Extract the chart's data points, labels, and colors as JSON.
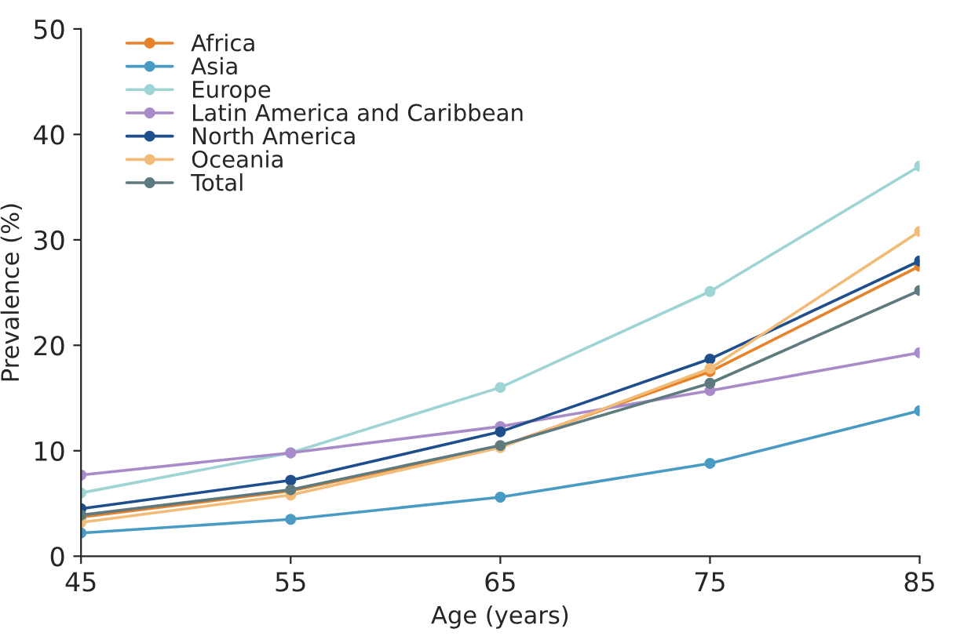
{
  "chart_data": {
    "type": "line",
    "xlabel": "Age (years)",
    "ylabel": "Prevalence (%)",
    "x": [
      45,
      55,
      65,
      75,
      85
    ],
    "series": [
      {
        "name": "Africa",
        "color": "#e8822a",
        "values": [
          3.7,
          6.2,
          10.4,
          17.5,
          27.5
        ]
      },
      {
        "name": "Asia",
        "color": "#4a9bc4",
        "values": [
          2.2,
          3.5,
          5.6,
          8.8,
          13.8
        ]
      },
      {
        "name": "Europe",
        "color": "#9fd4d4",
        "values": [
          6.0,
          9.8,
          16.0,
          25.1,
          37.0
        ]
      },
      {
        "name": "Latin America and Caribbean",
        "color": "#a98bc9",
        "values": [
          7.7,
          9.8,
          12.3,
          15.7,
          19.3
        ]
      },
      {
        "name": "North America",
        "color": "#1f4e8c",
        "values": [
          4.5,
          7.2,
          11.8,
          18.7,
          28.0
        ]
      },
      {
        "name": "Oceania",
        "color": "#f2bc78",
        "values": [
          3.2,
          5.8,
          10.3,
          17.8,
          30.8
        ]
      },
      {
        "name": "Total",
        "color": "#5f7a7f",
        "values": [
          3.9,
          6.3,
          10.5,
          16.4,
          25.2
        ]
      }
    ],
    "xlim": [
      45,
      85
    ],
    "xticks": [
      45,
      55,
      65,
      75,
      85
    ],
    "ylim": [
      0,
      50
    ],
    "yticks": [
      0,
      10,
      20,
      30,
      40,
      50
    ],
    "grid": false,
    "legend": "top left",
    "marker": "circle",
    "line_style": "solid"
  }
}
